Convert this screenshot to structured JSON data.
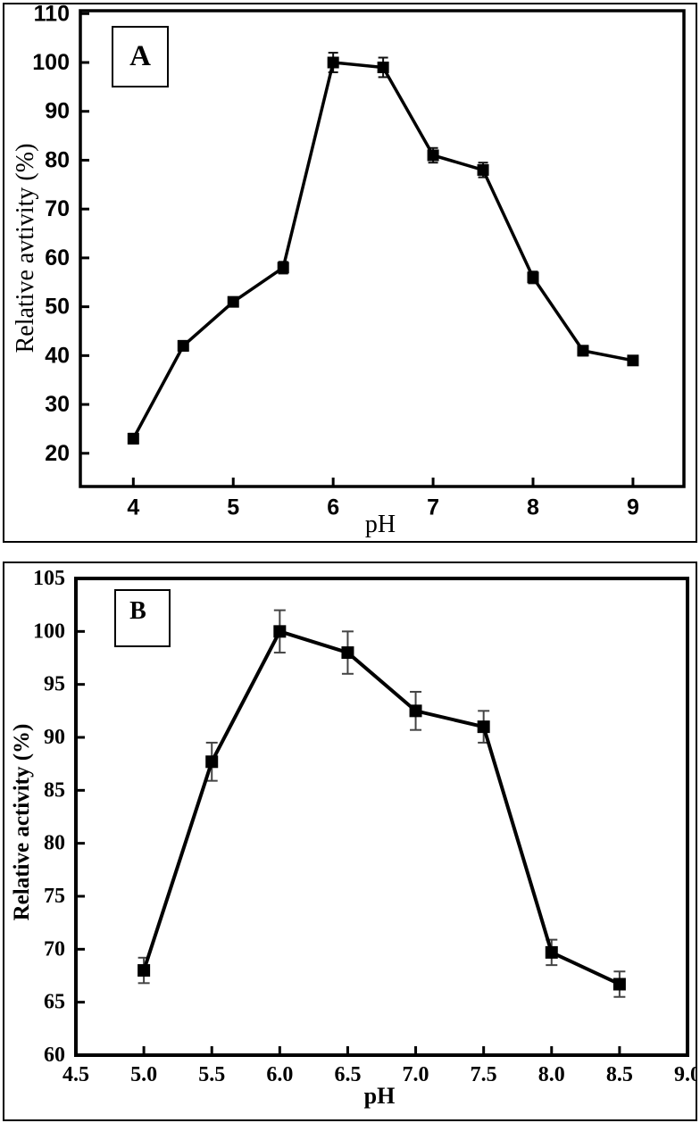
{
  "figure": {
    "background": "#ffffff",
    "panel_border_color": "#000000",
    "axis_color": "#000000",
    "line_color": "#000000",
    "marker_color": "#000000",
    "marker_shape": "filled-square"
  },
  "chart_data": [
    {
      "panel_label": "A",
      "type": "line",
      "xlabel": "pH",
      "ylabel": "Relative avtivity (%)",
      "series": [
        {
          "name": "relative-activity-vs-pH",
          "x": [
            4,
            4.5,
            5,
            5.5,
            6,
            6.5,
            7,
            7.5,
            8,
            8.5,
            9
          ],
          "y": [
            23,
            42,
            51,
            58,
            100,
            99,
            81,
            78,
            56,
            41,
            39
          ],
          "yerr": [
            1,
            1,
            0.8,
            1.2,
            2,
            2,
            1.5,
            1.5,
            1.2,
            1,
            0.8
          ]
        }
      ],
      "xtick_values": [
        4,
        5,
        6,
        7,
        8,
        9
      ],
      "xtick_labels": [
        "4",
        "5",
        "6",
        "7",
        "8",
        "9"
      ],
      "ytick_values": [
        20,
        30,
        40,
        50,
        60,
        70,
        80,
        90,
        100,
        110
      ],
      "ytick_labels": [
        "20",
        "30",
        "40",
        "50",
        "60",
        "70",
        "80",
        "90",
        "100",
        "110"
      ],
      "xlim": [
        3.47,
        9.51
      ],
      "ylim": [
        13.2,
        110.6
      ],
      "grid": false,
      "legend": null,
      "error_bars": true,
      "error_bar_color": "#111111"
    },
    {
      "panel_label": "B",
      "type": "line",
      "xlabel": "pH",
      "ylabel": "Relative activity (%)",
      "series": [
        {
          "name": "relative-activity-vs-pH",
          "x": [
            5.0,
            5.5,
            6.0,
            6.5,
            7.0,
            7.5,
            8.0,
            8.5
          ],
          "y": [
            68,
            87.7,
            100,
            98,
            92.5,
            91,
            69.7,
            66.7
          ],
          "yerr": [
            1.2,
            1.8,
            2,
            2,
            1.8,
            1.5,
            1.2,
            1.2
          ]
        }
      ],
      "xtick_values": [
        4.5,
        5.0,
        5.5,
        6.0,
        6.5,
        7.0,
        7.5,
        8.0,
        8.5,
        9.0
      ],
      "xtick_labels": [
        "4.5",
        "5.0",
        "5.5",
        "6.0",
        "6.5",
        "7.0",
        "7.5",
        "8.0",
        "8.5",
        "9.0"
      ],
      "ytick_values": [
        60,
        65,
        70,
        75,
        80,
        85,
        90,
        95,
        100,
        105
      ],
      "ytick_labels": [
        "60",
        "65",
        "70",
        "75",
        "80",
        "85",
        "90",
        "95",
        "100",
        "105"
      ],
      "xlim": [
        4.5,
        9.0
      ],
      "ylim": [
        60,
        105
      ],
      "grid": false,
      "legend": null,
      "error_bars": true,
      "error_bar_color": "#444444"
    }
  ]
}
